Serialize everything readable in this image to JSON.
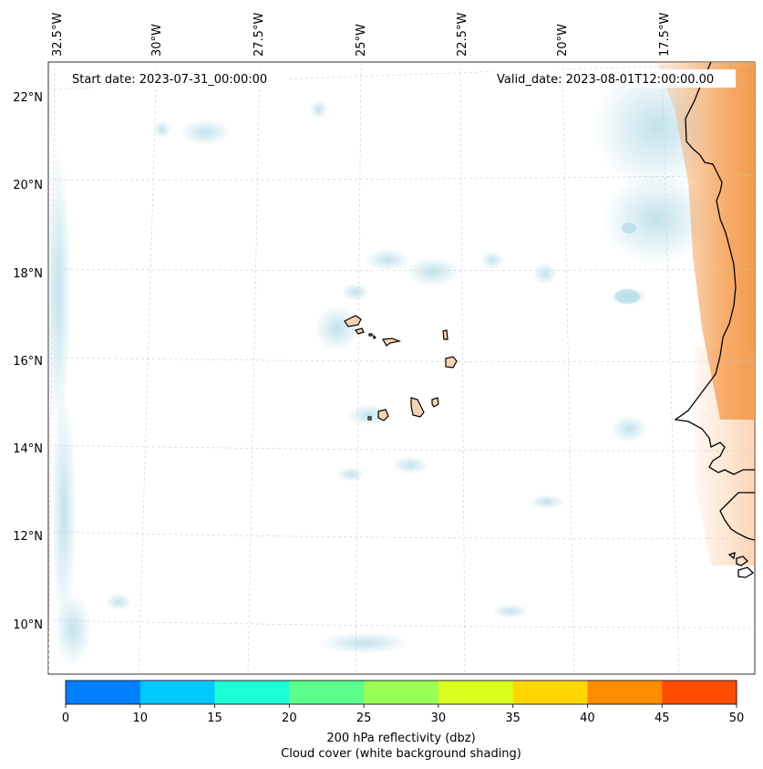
{
  "map": {
    "start_date_text": "Start date: 2023-07-31_00:00:00",
    "valid_date_text": "Valid_date: 2023-08-01T12:00:00.00",
    "lon_labels": [
      "32.5°W",
      "30°W",
      "27.5°W",
      "25°W",
      "22.5°W",
      "20°W",
      "17.5°W"
    ],
    "lat_labels": [
      "22°N",
      "20°N",
      "18°N",
      "16°N",
      "14°N",
      "12°N",
      "10°N"
    ],
    "region": "Cape Verde islands and West African coast",
    "colors": {
      "land_fill": "#f5d2b0",
      "reflectivity_orange": "#f6a45c",
      "cloud_blue": "#add8e6",
      "coastline": "#000000",
      "gridline": "#cccccc"
    }
  },
  "colorbar": {
    "ticks": [
      "0",
      "10",
      "15",
      "20",
      "25",
      "30",
      "35",
      "40",
      "45",
      "50"
    ],
    "colors": [
      "#0080ff",
      "#00c8ff",
      "#1effd8",
      "#5cff8c",
      "#9aff55",
      "#d8ff1e",
      "#ffd700",
      "#ff8c00",
      "#ff4d00"
    ],
    "label_line1": "200 hPa reflectivity (dbz)",
    "label_line2": "Cloud cover (white background shading)"
  }
}
